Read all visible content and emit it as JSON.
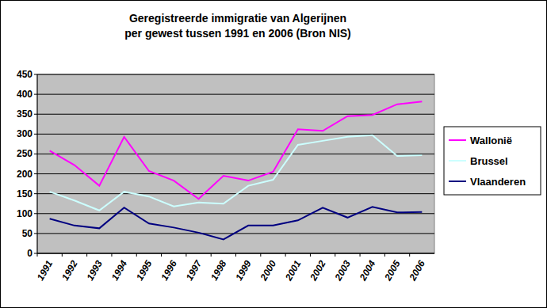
{
  "chart_data": {
    "type": "line",
    "title": "Geregistreerde immigratie van Algerijnen\nper gewest tussen 1991 en 2006 (Bron NIS)",
    "categories": [
      "1991",
      "1992",
      "1993",
      "1994",
      "1995",
      "1996",
      "1997",
      "1998",
      "1999",
      "2000",
      "2001",
      "2002",
      "2003",
      "2004",
      "2005",
      "2006"
    ],
    "series": [
      {
        "name": "Wallonië",
        "color": "#ff00ff",
        "values": [
          258,
          222,
          170,
          293,
          207,
          183,
          137,
          195,
          183,
          205,
          312,
          308,
          345,
          348,
          375,
          382
        ]
      },
      {
        "name": "Brussel",
        "color": "#ccffff",
        "values": [
          155,
          133,
          108,
          155,
          143,
          118,
          128,
          125,
          170,
          185,
          273,
          283,
          293,
          297,
          245,
          247
        ]
      },
      {
        "name": "Vlaanderen",
        "color": "#000080",
        "values": [
          87,
          70,
          63,
          115,
          75,
          65,
          52,
          35,
          70,
          70,
          83,
          115,
          90,
          117,
          103,
          104
        ]
      }
    ],
    "ylim": [
      0,
      450
    ],
    "yticks": [
      0,
      50,
      100,
      150,
      200,
      250,
      300,
      350,
      400,
      450
    ],
    "grid": true,
    "legend": "right"
  }
}
